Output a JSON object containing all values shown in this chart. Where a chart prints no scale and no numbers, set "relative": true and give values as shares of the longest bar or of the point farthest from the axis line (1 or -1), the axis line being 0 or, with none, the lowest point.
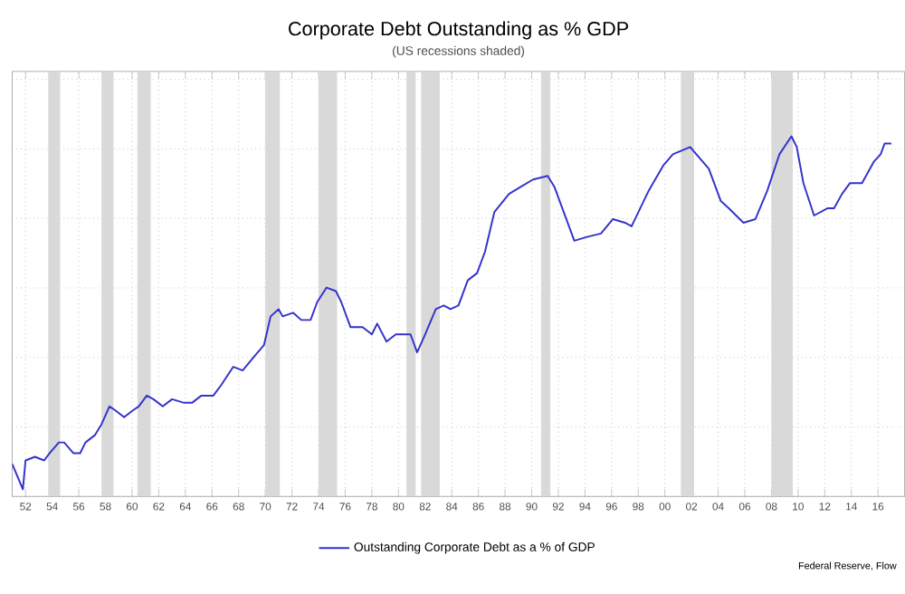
{
  "chart_data": {
    "type": "line",
    "title": "Corporate Debt Outstanding as % GDP",
    "subtitle": "(US recessions shaded)",
    "relative": true,
    "grid": true,
    "legend": "bottom",
    "marker": "none",
    "line_style": "solid",
    "annotations": [
      "Federal Reserve, Flow"
    ],
    "xlim": [
      1951,
      2018
    ],
    "xticks": [
      {
        "value": 1952,
        "label": "52"
      },
      {
        "value": 1954,
        "label": "54"
      },
      {
        "value": 1956,
        "label": "56"
      },
      {
        "value": 1958,
        "label": "58"
      },
      {
        "value": 1960,
        "label": "60"
      },
      {
        "value": 1962,
        "label": "62"
      },
      {
        "value": 1964,
        "label": "64"
      },
      {
        "value": 1966,
        "label": "66"
      },
      {
        "value": 1968,
        "label": "68"
      },
      {
        "value": 1970,
        "label": "70"
      },
      {
        "value": 1972,
        "label": "72"
      },
      {
        "value": 1974,
        "label": "74"
      },
      {
        "value": 1976,
        "label": "76"
      },
      {
        "value": 1978,
        "label": "78"
      },
      {
        "value": 1980,
        "label": "80"
      },
      {
        "value": 1982,
        "label": "82"
      },
      {
        "value": 1984,
        "label": "84"
      },
      {
        "value": 1986,
        "label": "86"
      },
      {
        "value": 1988,
        "label": "88"
      },
      {
        "value": 1990,
        "label": "90"
      },
      {
        "value": 1992,
        "label": "92"
      },
      {
        "value": 1994,
        "label": "94"
      },
      {
        "value": 1996,
        "label": "96"
      },
      {
        "value": 1998,
        "label": "98"
      },
      {
        "value": 2000,
        "label": "00"
      },
      {
        "value": 2002,
        "label": "02"
      },
      {
        "value": 2004,
        "label": "04"
      },
      {
        "value": 2006,
        "label": "06"
      },
      {
        "value": 2008,
        "label": "08"
      },
      {
        "value": 2010,
        "label": "10"
      },
      {
        "value": 2012,
        "label": "12"
      },
      {
        "value": 2014,
        "label": "14"
      },
      {
        "value": 2016,
        "label": "16"
      }
    ],
    "bands": [
      {
        "axis": "x",
        "from": 1953.7,
        "to": 1954.6,
        "color": "#d9d9d9"
      },
      {
        "axis": "x",
        "from": 1957.7,
        "to": 1958.6,
        "color": "#d9d9d9"
      },
      {
        "axis": "x",
        "from": 1960.4,
        "to": 1961.4,
        "color": "#d9d9d9"
      },
      {
        "axis": "x",
        "from": 1970.0,
        "to": 1971.1,
        "color": "#d9d9d9"
      },
      {
        "axis": "x",
        "from": 1974.0,
        "to": 1975.4,
        "color": "#d9d9d9"
      },
      {
        "axis": "x",
        "from": 1980.6,
        "to": 1981.3,
        "color": "#d9d9d9"
      },
      {
        "axis": "x",
        "from": 1981.7,
        "to": 1983.1,
        "color": "#d9d9d9"
      },
      {
        "axis": "x",
        "from": 1990.7,
        "to": 1991.4,
        "color": "#d9d9d9"
      },
      {
        "axis": "x",
        "from": 2001.2,
        "to": 2002.2,
        "color": "#d9d9d9"
      },
      {
        "axis": "x",
        "from": 2008.0,
        "to": 2009.6,
        "color": "#d9d9d9"
      }
    ],
    "series": [
      {
        "name": "Outstanding Corporate Debt as a % of GDP",
        "color": "#3333cc",
        "x": [
          1951.0,
          1951.8,
          1952.0,
          1952.7,
          1953.4,
          1953.8,
          1954.5,
          1954.9,
          1955.6,
          1956.1,
          1956.5,
          1957.2,
          1957.7,
          1958.3,
          1958.7,
          1959.4,
          1960.1,
          1960.5,
          1961.1,
          1961.6,
          1962.3,
          1963.0,
          1963.9,
          1964.5,
          1965.2,
          1966.1,
          1966.7,
          1967.6,
          1968.3,
          1969.2,
          1969.9,
          1970.4,
          1971.0,
          1971.3,
          1972.1,
          1972.7,
          1973.4,
          1973.9,
          1974.6,
          1975.3,
          1975.7,
          1976.4,
          1977.3,
          1978.0,
          1978.4,
          1979.1,
          1979.8,
          1980.7,
          1980.9,
          1981.4,
          1982.0,
          1982.8,
          1983.4,
          1983.9,
          1984.5,
          1985.2,
          1985.9,
          1986.5,
          1987.2,
          1988.3,
          1989.2,
          1990.1,
          1991.2,
          1991.7,
          1993.2,
          1994.1,
          1995.2,
          1996.1,
          1997.0,
          1997.5,
          1998.8,
          1999.9,
          2000.6,
          2001.9,
          2003.3,
          2004.2,
          2004.8,
          2005.9,
          2006.8,
          2007.7,
          2008.6,
          2009.5,
          2009.9,
          2010.4,
          2011.2,
          2012.2,
          2012.7,
          2013.3,
          2013.9,
          2014.4,
          2014.8,
          2015.7,
          2016.2,
          2016.5,
          2017.0
        ],
        "values": [
          0.09,
          0.02,
          0.1,
          0.11,
          0.1,
          0.12,
          0.15,
          0.15,
          0.12,
          0.12,
          0.15,
          0.17,
          0.2,
          0.25,
          0.24,
          0.22,
          0.24,
          0.25,
          0.28,
          0.27,
          0.25,
          0.27,
          0.26,
          0.26,
          0.28,
          0.28,
          0.31,
          0.36,
          0.35,
          0.39,
          0.42,
          0.5,
          0.52,
          0.5,
          0.51,
          0.49,
          0.49,
          0.54,
          0.58,
          0.57,
          0.54,
          0.47,
          0.47,
          0.45,
          0.48,
          0.43,
          0.45,
          0.45,
          0.45,
          0.4,
          0.45,
          0.52,
          0.53,
          0.52,
          0.53,
          0.6,
          0.62,
          0.68,
          0.79,
          0.84,
          0.86,
          0.88,
          0.89,
          0.86,
          0.71,
          0.72,
          0.73,
          0.77,
          0.76,
          0.75,
          0.85,
          0.92,
          0.95,
          0.97,
          0.91,
          0.82,
          0.8,
          0.76,
          0.77,
          0.85,
          0.95,
          1.0,
          0.97,
          0.87,
          0.78,
          0.8,
          0.8,
          0.84,
          0.87,
          0.87,
          0.87,
          0.93,
          0.95,
          0.98,
          0.98
        ]
      }
    ]
  }
}
